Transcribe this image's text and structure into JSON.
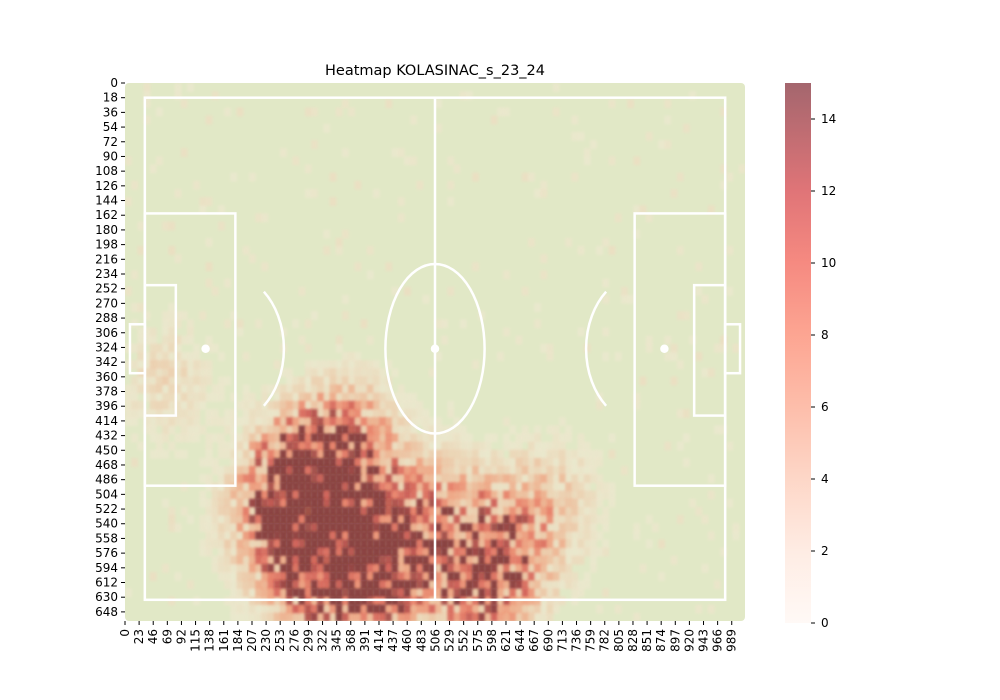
{
  "chart_data": {
    "type": "heatmap",
    "title": "Heatmap KOLASINAC_s_23_24",
    "xlabel": "",
    "ylabel": "",
    "x_ticks": [
      "0",
      "23",
      "46",
      "69",
      "92",
      "115",
      "138",
      "161",
      "184",
      "207",
      "230",
      "253",
      "276",
      "299",
      "322",
      "345",
      "368",
      "391",
      "414",
      "437",
      "460",
      "483",
      "506",
      "529",
      "552",
      "575",
      "598",
      "621",
      "644",
      "667",
      "690",
      "713",
      "736",
      "759",
      "782",
      "805",
      "828",
      "851",
      "874",
      "897",
      "920",
      "943",
      "966",
      "989"
    ],
    "y_ticks": [
      "0",
      "18",
      "36",
      "54",
      "72",
      "90",
      "108",
      "126",
      "144",
      "162",
      "180",
      "198",
      "216",
      "234",
      "252",
      "270",
      "288",
      "306",
      "324",
      "342",
      "360",
      "378",
      "396",
      "414",
      "432",
      "450",
      "468",
      "486",
      "504",
      "522",
      "540",
      "558",
      "576",
      "594",
      "612",
      "630",
      "648"
    ],
    "xlim": [
      0,
      1000
    ],
    "ylim": [
      0,
      660
    ],
    "y_inverted": true,
    "colorbar": {
      "min": 0,
      "max": 15,
      "ticks": [
        "0",
        "2",
        "4",
        "6",
        "8",
        "10",
        "12",
        "14"
      ],
      "colormap": "Reds",
      "alpha": 0.6
    },
    "pitch": {
      "background": "#e1e8c6",
      "line_color": "#ffffff"
    },
    "hotspots": [
      {
        "x": 310,
        "y": 515,
        "value": 13
      },
      {
        "x": 265,
        "y": 475,
        "value": 10
      },
      {
        "x": 345,
        "y": 470,
        "value": 9
      },
      {
        "x": 300,
        "y": 600,
        "value": 11
      },
      {
        "x": 390,
        "y": 605,
        "value": 11
      },
      {
        "x": 420,
        "y": 600,
        "value": 9
      },
      {
        "x": 570,
        "y": 610,
        "value": 12
      },
      {
        "x": 470,
        "y": 520,
        "value": 7
      },
      {
        "x": 560,
        "y": 540,
        "value": 6
      },
      {
        "x": 220,
        "y": 540,
        "value": 6
      },
      {
        "x": 640,
        "y": 560,
        "value": 5
      },
      {
        "x": 360,
        "y": 420,
        "value": 5
      },
      {
        "x": 60,
        "y": 360,
        "value": 4
      },
      {
        "x": 690,
        "y": 500,
        "value": 4
      }
    ]
  }
}
